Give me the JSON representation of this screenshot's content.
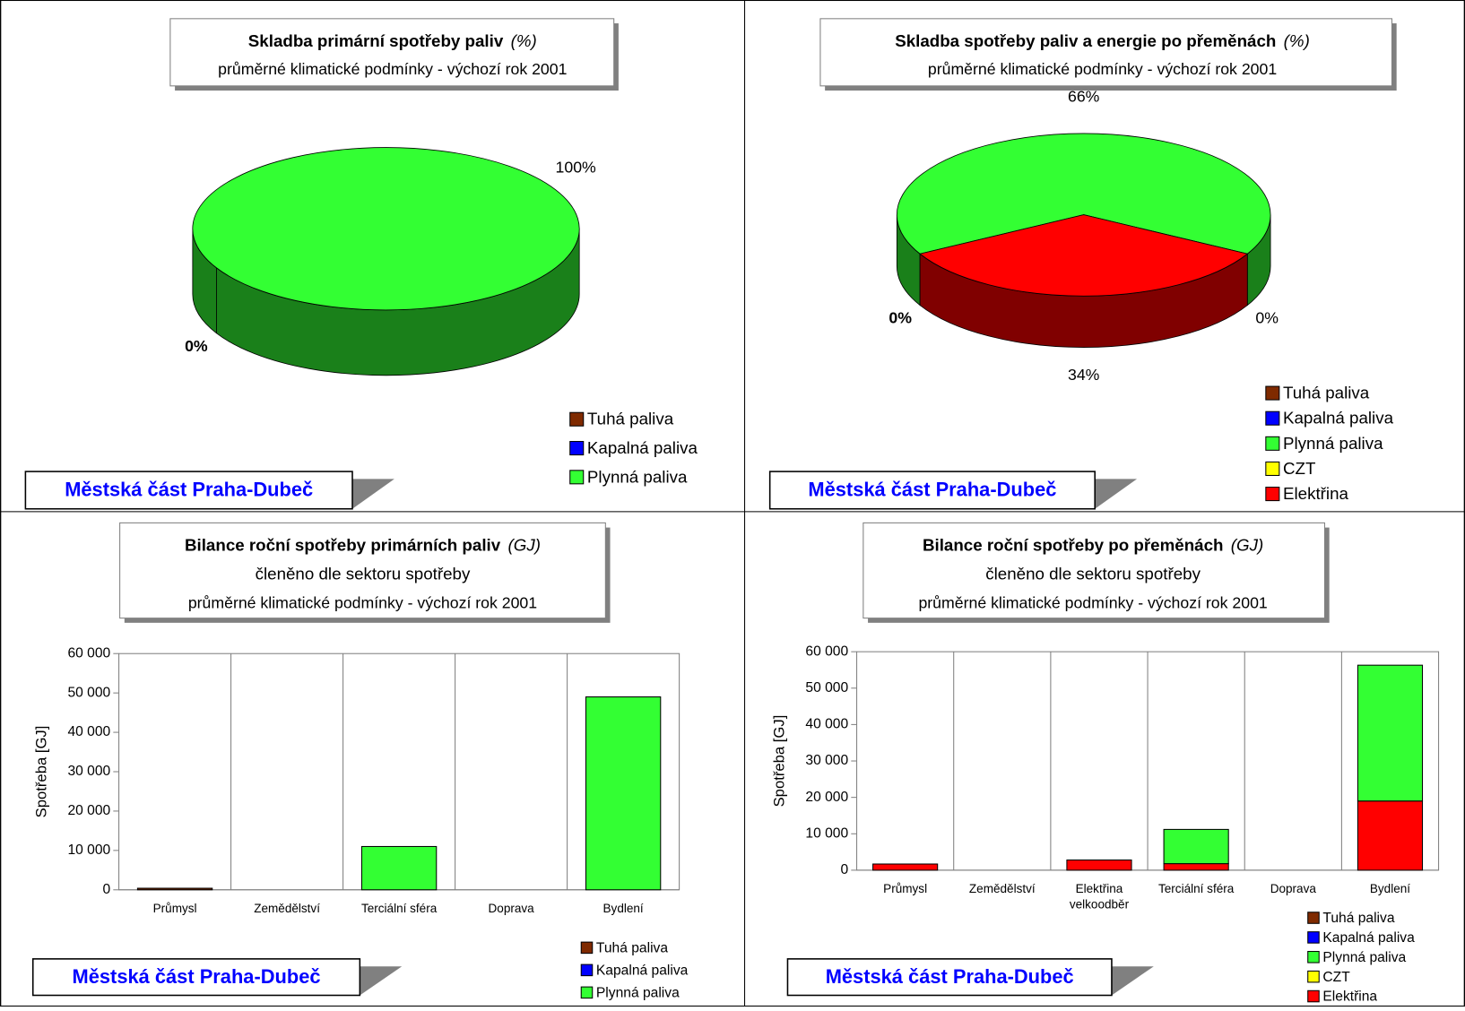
{
  "chart_data": [
    {
      "type": "pie",
      "title": "Skladba primární spotřeby paliv",
      "title_unit": "(%)",
      "subtitle": [
        "průměrné klimatické podmínky - výchozí rok 2001"
      ],
      "categories": [
        "Tuhá paliva",
        "Kapalná paliva",
        "Plynná paliva"
      ],
      "values": [
        0,
        0,
        100
      ],
      "value_labels": [
        "0%",
        null,
        "100%"
      ],
      "colors": [
        "#7f2a00",
        "#0000ff",
        "#33ff33"
      ],
      "footer": "Městská část Praha-Dubeč"
    },
    {
      "type": "pie",
      "title": "Skladba spotřeby paliv a energie po přeměnách",
      "title_unit": "(%)",
      "subtitle": [
        "průměrné klimatické podmínky - výchozí rok 2001"
      ],
      "categories": [
        "Tuhá paliva",
        "Kapalná paliva",
        "Plynná paliva",
        "CZT",
        "Elektřina"
      ],
      "values": [
        0,
        0,
        66,
        0,
        34
      ],
      "value_labels": [
        "0%",
        null,
        "66%",
        "0%",
        "34%"
      ],
      "colors": [
        "#7f2a00",
        "#0000ff",
        "#33ff33",
        "#ffff00",
        "#ff0000"
      ],
      "footer": "Městská část Praha-Dubeč"
    },
    {
      "type": "bar",
      "stacked": true,
      "title": "Bilance roční spotřeby primárních paliv",
      "title_unit": "(GJ)",
      "subtitle": [
        "členěno dle sektoru spotřeby",
        "průměrné klimatické podmínky - výchozí rok 2001"
      ],
      "categories": [
        "Průmysl",
        "Zemědělství",
        "Terciální sféra",
        "Doprava",
        "Bydlení"
      ],
      "series": [
        {
          "name": "Tuhá paliva",
          "color": "#7f2a00",
          "values": [
            400,
            0,
            0,
            0,
            0
          ]
        },
        {
          "name": "Kapalná paliva",
          "color": "#0000ff",
          "values": [
            0,
            0,
            0,
            0,
            0
          ]
        },
        {
          "name": "Plynná paliva",
          "color": "#33ff33",
          "values": [
            0,
            0,
            11000,
            0,
            49000
          ]
        }
      ],
      "ylabel": "Spotřeba [GJ]",
      "ylim": [
        0,
        60000
      ],
      "yticks": [
        0,
        {
          "value": 10000,
          "label": "10 000"
        },
        {
          "value": 20000,
          "label": "20 000"
        },
        {
          "value": 30000,
          "label": "30 000"
        },
        {
          "value": 40000,
          "label": "40 000"
        },
        {
          "value": 50000,
          "label": "50 000"
        },
        {
          "value": 60000,
          "label": "60 000"
        }
      ],
      "footer": "Městská část Praha-Dubeč"
    },
    {
      "type": "bar",
      "stacked": true,
      "title": "Bilance roční spotřeby po přeměnách",
      "title_unit": "(GJ)",
      "subtitle": [
        "členěno dle sektoru spotřeby",
        "průměrné klimatické podmínky - výchozí rok 2001"
      ],
      "categories": [
        "Průmysl",
        "Zemědělství",
        "Elektřina velkoodběr",
        "Terciální sféra",
        "Doprava",
        "Bydlení"
      ],
      "series": [
        {
          "name": "Elektřina",
          "color": "#ff0000",
          "values": [
            1700,
            0,
            2800,
            1800,
            0,
            19000
          ]
        },
        {
          "name": "Tuhá paliva",
          "color": "#7f2a00",
          "values": [
            0,
            0,
            0,
            0,
            0,
            0
          ]
        },
        {
          "name": "Kapalná paliva",
          "color": "#0000ff",
          "values": [
            0,
            0,
            0,
            0,
            0,
            0
          ]
        },
        {
          "name": "Plynná paliva",
          "color": "#33ff33",
          "values": [
            0,
            0,
            0,
            9400,
            0,
            37300
          ]
        },
        {
          "name": "CZT",
          "color": "#ffff00",
          "values": [
            0,
            0,
            0,
            0,
            0,
            0
          ]
        }
      ],
      "legend_order": [
        1,
        2,
        3,
        4,
        0
      ],
      "ylabel": "Spotřeba [GJ]",
      "ylim": [
        0,
        60000
      ],
      "yticks": [
        0,
        {
          "value": 10000,
          "label": "10 000"
        },
        {
          "value": 20000,
          "label": "20 000"
        },
        {
          "value": 30000,
          "label": "30 000"
        },
        {
          "value": 40000,
          "label": "40 000"
        },
        {
          "value": 50000,
          "label": "50 000"
        },
        {
          "value": 60000,
          "label": "60 000"
        }
      ],
      "footer": "Městská část Praha-Dubeč"
    }
  ]
}
